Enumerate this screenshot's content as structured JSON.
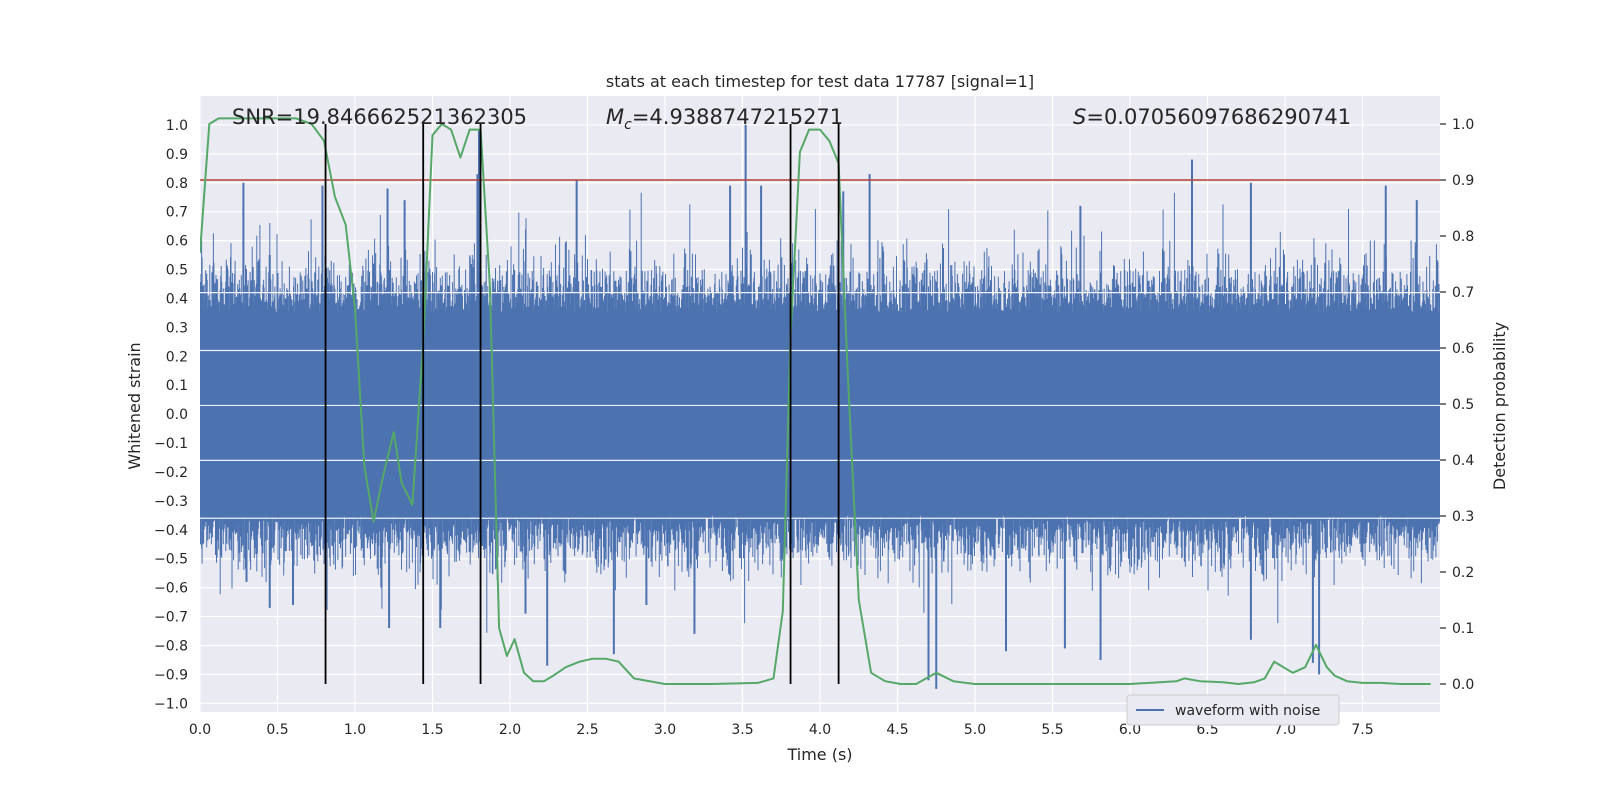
{
  "chart_data": {
    "type": "line",
    "title": "stats at each timestep for test data 17787 [signal=1]",
    "xlabel": "Time (s)",
    "ylabel_left": "Whitened strain",
    "ylabel_right": "Detection probability",
    "xlim": [
      0.0,
      8.0
    ],
    "ylim_left": [
      -1.03,
      1.1
    ],
    "ylim_right": [
      -0.05,
      1.05
    ],
    "x_ticks": [
      0.0,
      0.5,
      1.0,
      1.5,
      2.0,
      2.5,
      3.0,
      3.5,
      4.0,
      4.5,
      5.0,
      5.5,
      6.0,
      6.5,
      7.0,
      7.5
    ],
    "x_tick_labels": [
      "0.0",
      "0.5",
      "1.0",
      "1.5",
      "2.0",
      "2.5",
      "3.0",
      "3.5",
      "4.0",
      "4.5",
      "5.0",
      "5.5",
      "6.0",
      "6.5",
      "7.0",
      "7.5"
    ],
    "y_left_ticks": [
      1.0,
      0.9,
      0.8,
      0.7,
      0.6,
      0.5,
      0.4,
      0.3,
      0.2,
      0.1,
      0.0,
      -0.1,
      -0.2,
      -0.3,
      -0.4,
      -0.5,
      -0.6,
      -0.7,
      -0.8,
      -0.9,
      -1.0
    ],
    "y_left_tick_labels": [
      "1.0",
      "0.9",
      "0.8",
      "0.7",
      "0.6",
      "0.5",
      "0.4",
      "0.3",
      "0.2",
      "0.1",
      "0.0",
      "−0.1",
      "−0.2",
      "−0.3",
      "−0.4",
      "−0.5",
      "−0.6",
      "−0.7",
      "−0.8",
      "−0.9",
      "−1.0"
    ],
    "y_right_ticks": [
      1.0,
      0.9,
      0.8,
      0.7,
      0.6,
      0.5,
      0.4,
      0.3,
      0.2,
      0.1,
      0.0
    ],
    "y_right_tick_labels": [
      "1.0",
      "0.9",
      "0.8",
      "0.7",
      "0.6",
      "0.5",
      "0.4",
      "0.3",
      "0.2",
      "0.1",
      "0.0"
    ],
    "annotations": {
      "snr": "SNR=19.846662521362305",
      "mc_symbol": "M",
      "mc_sub": "c",
      "mc_value": "=4.9388747215271",
      "s_symbol": "S",
      "s_value": "=0.07056097686290741"
    },
    "threshold": {
      "value": 0.9,
      "axis": "right",
      "color": "#b5403b"
    },
    "vertical_lines": [
      0.81,
      1.44,
      1.81,
      3.81,
      4.12
    ],
    "vertical_line_range_right": [
      0.0,
      1.0
    ],
    "legend": {
      "position": "lower-right",
      "label": "waveform with noise"
    },
    "series": [
      {
        "name": "waveform with noise",
        "axis": "left",
        "color": "#4c72b0",
        "kind": "dense-noise",
        "t_range": [
          0.0,
          8.0
        ],
        "core_amplitude": 0.35,
        "spikes": [
          [
            0.28,
            0.8
          ],
          [
            0.3,
            -0.58
          ],
          [
            0.45,
            0.55
          ],
          [
            0.45,
            -0.67
          ],
          [
            0.6,
            -0.66
          ],
          [
            0.79,
            0.79
          ],
          [
            1.17,
            -0.6
          ],
          [
            1.21,
            0.78
          ],
          [
            1.22,
            -0.74
          ],
          [
            1.32,
            0.74
          ],
          [
            1.55,
            -0.74
          ],
          [
            1.79,
            0.83
          ],
          [
            2.1,
            -0.69
          ],
          [
            2.24,
            -0.87
          ],
          [
            2.43,
            0.81
          ],
          [
            2.67,
            -0.83
          ],
          [
            2.88,
            -0.66
          ],
          [
            3.19,
            -0.76
          ],
          [
            3.42,
            0.79
          ],
          [
            3.52,
            1.0
          ],
          [
            3.62,
            0.79
          ],
          [
            4.15,
            0.77
          ],
          [
            4.32,
            0.83
          ],
          [
            4.7,
            -0.92
          ],
          [
            4.75,
            -0.95
          ],
          [
            5.2,
            -0.82
          ],
          [
            5.58,
            -0.81
          ],
          [
            5.68,
            0.72
          ],
          [
            5.81,
            -0.85
          ],
          [
            6.4,
            0.88
          ],
          [
            6.78,
            -0.78
          ],
          [
            6.78,
            0.8
          ],
          [
            7.18,
            -0.86
          ],
          [
            7.22,
            -0.9
          ],
          [
            7.65,
            0.79
          ],
          [
            7.85,
            0.74
          ],
          [
            1.8,
            0.98
          ]
        ]
      },
      {
        "name": "Detection probability",
        "axis": "right",
        "color": "#55a868",
        "x": [
          0.0,
          0.06,
          0.12,
          0.25,
          0.5,
          0.62,
          0.72,
          0.8,
          0.87,
          0.94,
          1.0,
          1.06,
          1.12,
          1.18,
          1.25,
          1.3,
          1.37,
          1.44,
          1.5,
          1.56,
          1.62,
          1.68,
          1.74,
          1.81,
          1.87,
          1.93,
          1.98,
          2.03,
          2.09,
          2.15,
          2.22,
          2.28,
          2.36,
          2.45,
          2.53,
          2.62,
          2.7,
          2.8,
          3.0,
          3.3,
          3.6,
          3.7,
          3.76,
          3.81,
          3.87,
          3.93,
          4.0,
          4.06,
          4.12,
          4.18,
          4.25,
          4.33,
          4.42,
          4.52,
          4.62,
          4.75,
          4.86,
          5.0,
          5.2,
          5.6,
          6.0,
          6.3,
          6.35,
          6.45,
          6.6,
          6.7,
          6.8,
          6.87,
          6.93,
          7.05,
          7.13,
          7.2,
          7.27,
          7.32,
          7.4,
          7.5,
          7.62,
          7.75,
          7.88,
          7.94
        ],
        "y": [
          0.77,
          1.0,
          1.01,
          1.01,
          1.01,
          1.01,
          1.0,
          0.97,
          0.87,
          0.82,
          0.67,
          0.39,
          0.29,
          0.37,
          0.45,
          0.36,
          0.32,
          0.61,
          0.98,
          1.0,
          0.99,
          0.94,
          0.99,
          0.99,
          0.71,
          0.1,
          0.05,
          0.08,
          0.02,
          0.005,
          0.005,
          0.015,
          0.03,
          0.04,
          0.045,
          0.045,
          0.04,
          0.01,
          0.0,
          0.0,
          0.002,
          0.01,
          0.13,
          0.62,
          0.95,
          0.99,
          0.99,
          0.97,
          0.93,
          0.55,
          0.15,
          0.02,
          0.005,
          0.0,
          0.0,
          0.02,
          0.005,
          0.0,
          0.0,
          0.0,
          0.0,
          0.005,
          0.01,
          0.005,
          0.003,
          0.0,
          0.003,
          0.01,
          0.04,
          0.02,
          0.03,
          0.07,
          0.03,
          0.015,
          0.005,
          0.002,
          0.002,
          0.0,
          0.0,
          0.0
        ]
      }
    ]
  },
  "colors": {
    "figure_bg": "#ffffff",
    "axes_bg": "#eaeaf2",
    "grid": "#ffffff",
    "text": "#262626",
    "vline": "#000000",
    "legend_bg": "#eaeaf2",
    "legend_border": "#cccccc"
  }
}
